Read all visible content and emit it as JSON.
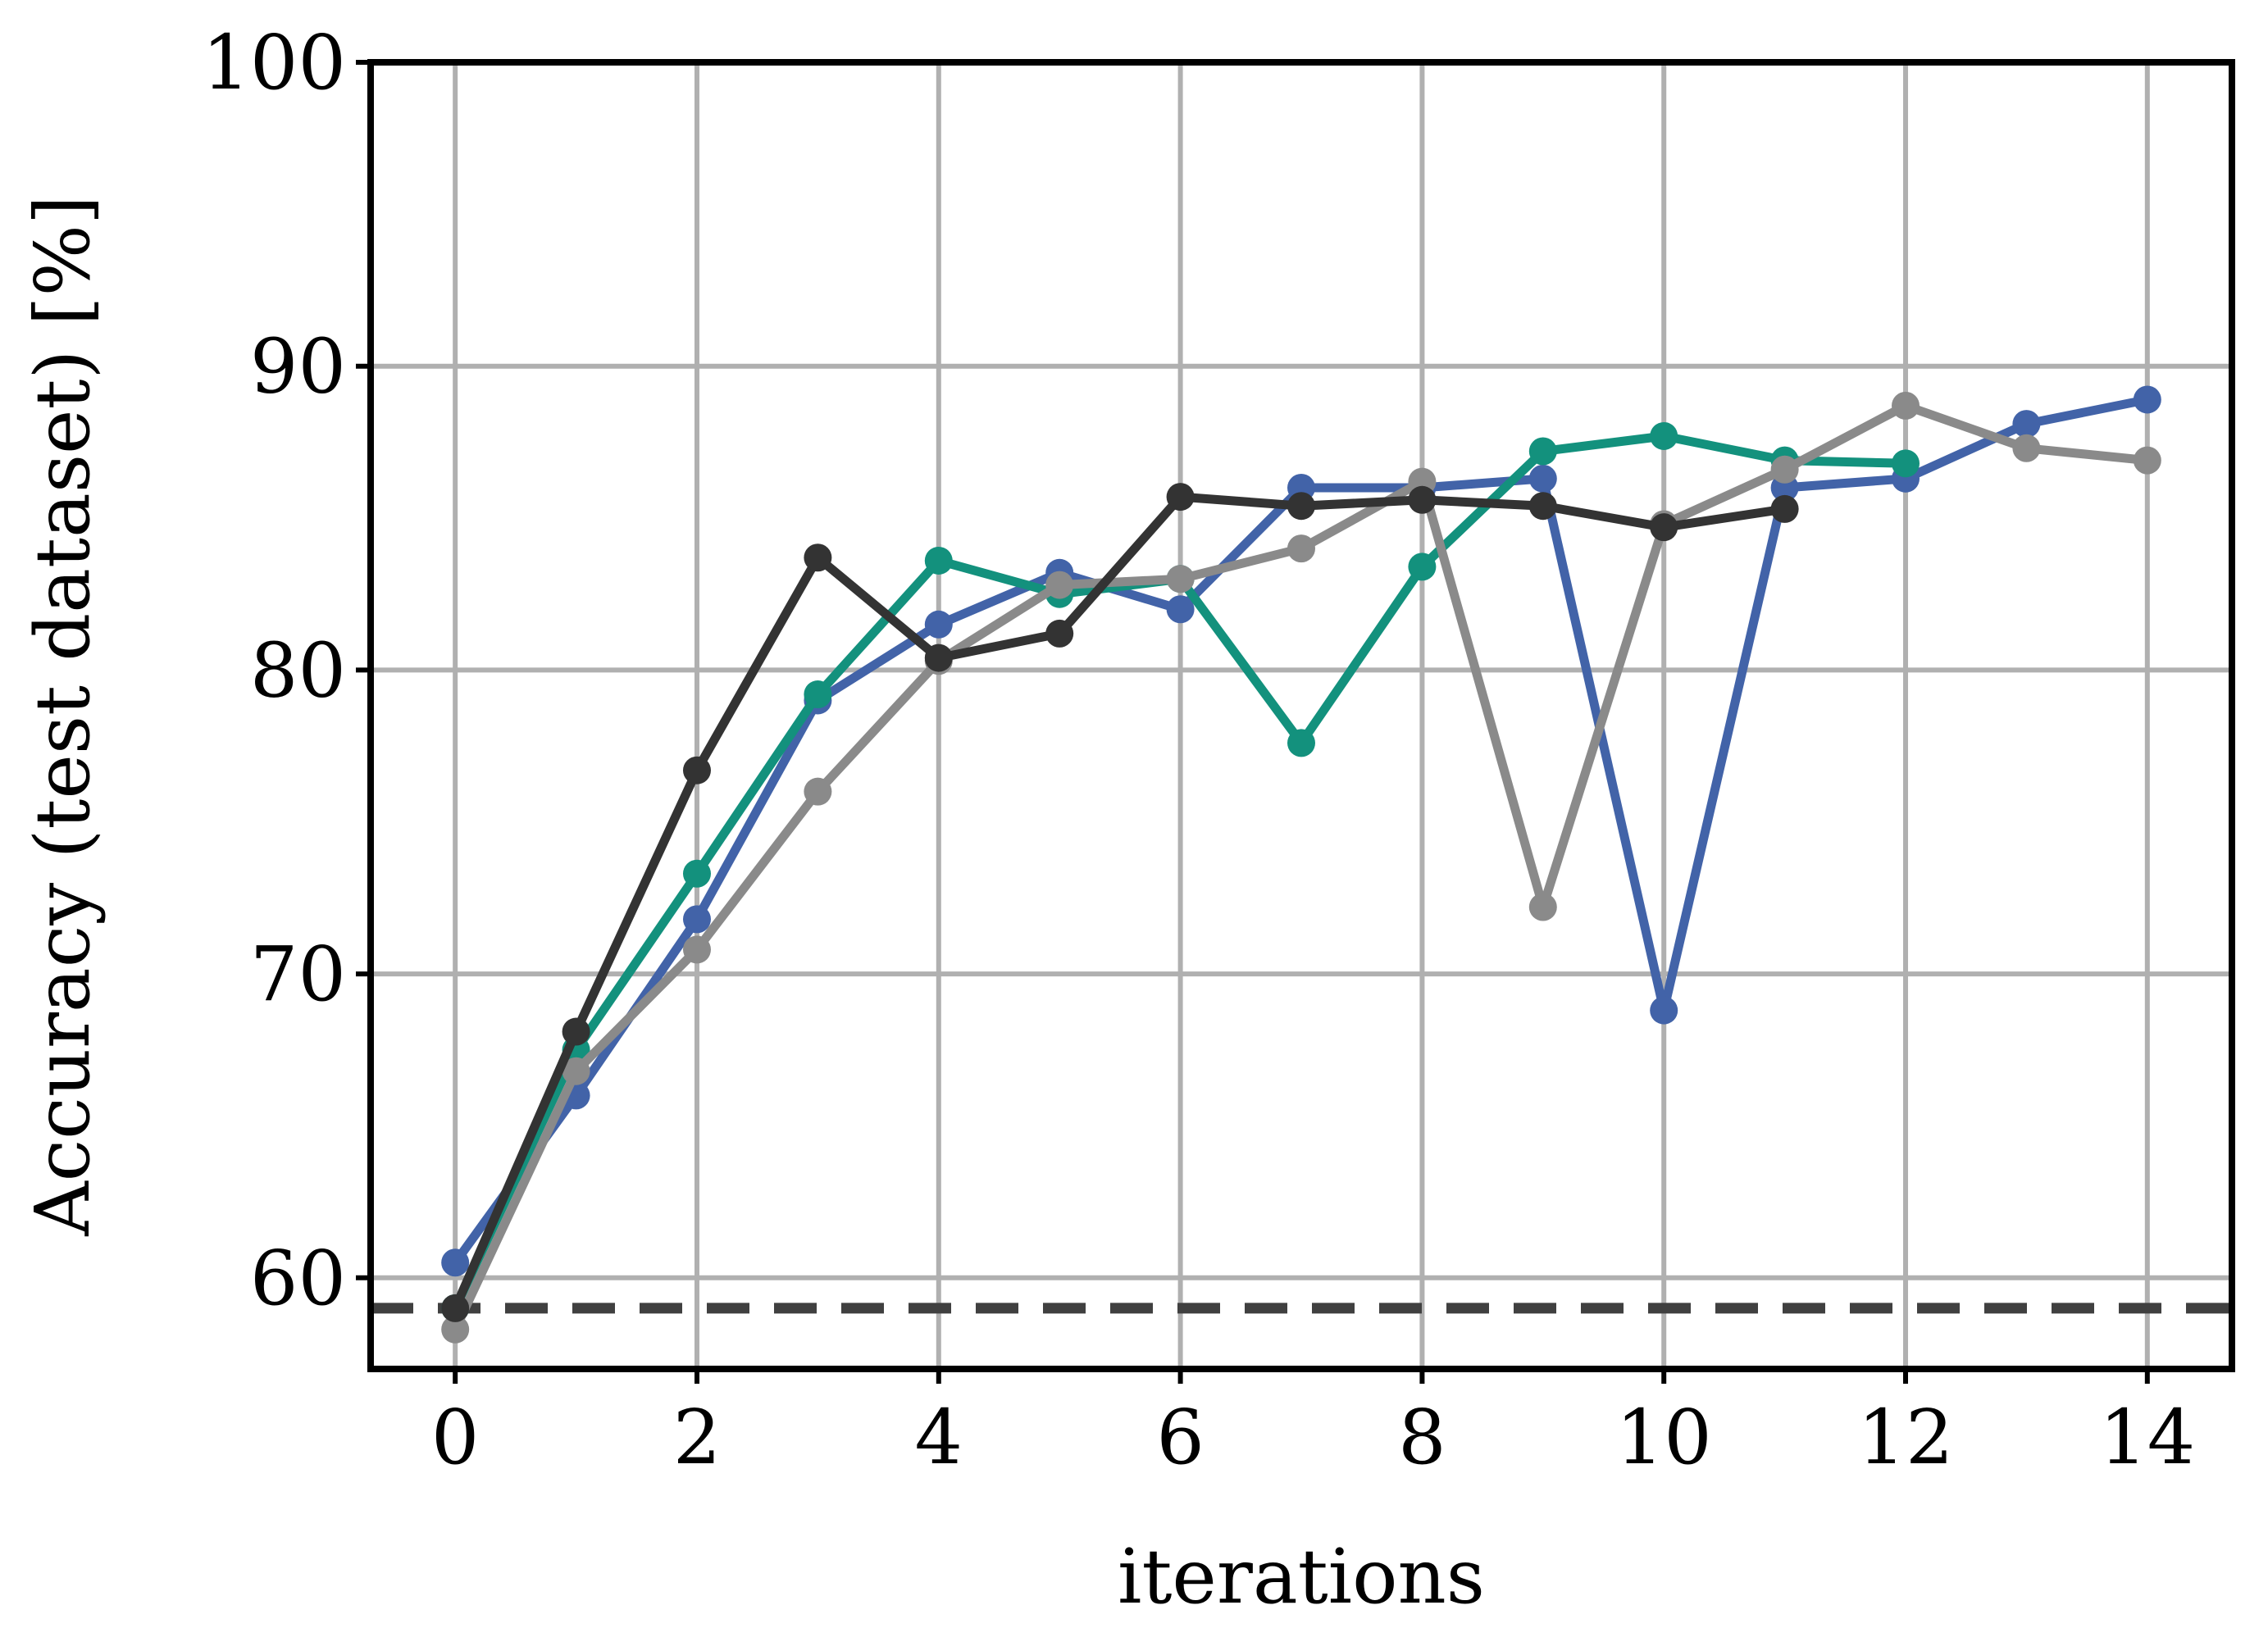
{
  "chart_data": {
    "type": "line",
    "title": "",
    "xlabel": "iterations",
    "ylabel": "Accuracy (test dataset) [%]",
    "xlim": [
      -0.7,
      14.7
    ],
    "ylim": [
      57,
      100
    ],
    "xticks": [
      0,
      2,
      4,
      6,
      8,
      10,
      12,
      14
    ],
    "yticks": [
      60,
      70,
      80,
      90,
      100
    ],
    "grid": true,
    "legend": "none",
    "baseline": {
      "y": 59.0,
      "style": "dashed",
      "color": "#404040"
    },
    "series": [
      {
        "color": "#4263a8",
        "x": [
          0,
          1,
          2,
          3,
          4,
          5,
          6,
          7,
          8,
          9,
          10,
          11,
          12,
          13,
          14
        ],
        "y": [
          60.5,
          66.0,
          71.8,
          79.0,
          81.5,
          83.2,
          82.0,
          86.0,
          86.0,
          86.3,
          68.8,
          86.0,
          86.3,
          88.1,
          88.9
        ]
      },
      {
        "color": "#13917d",
        "x": [
          0,
          1,
          2,
          3,
          4,
          5,
          6,
          7,
          8,
          9,
          10,
          11,
          12
        ],
        "y": [
          59.0,
          67.5,
          73.3,
          79.2,
          83.6,
          82.5,
          83.0,
          77.6,
          83.4,
          87.2,
          87.7,
          86.9,
          86.8
        ]
      },
      {
        "color": "#8a8a8a",
        "x": [
          0,
          1,
          2,
          3,
          4,
          5,
          6,
          7,
          8,
          9,
          10,
          11,
          12,
          13,
          14
        ],
        "y": [
          58.3,
          66.8,
          70.8,
          76.0,
          80.3,
          82.8,
          83.0,
          84.0,
          86.2,
          72.2,
          84.8,
          86.6,
          88.7,
          87.3,
          86.9
        ]
      },
      {
        "color": "#333333",
        "x": [
          0,
          1,
          2,
          3,
          4,
          5,
          6,
          7,
          8,
          9,
          10,
          11
        ],
        "y": [
          59.0,
          68.1,
          76.7,
          83.7,
          80.4,
          81.2,
          85.7,
          85.4,
          85.6,
          85.4,
          84.7,
          85.3
        ]
      }
    ]
  }
}
